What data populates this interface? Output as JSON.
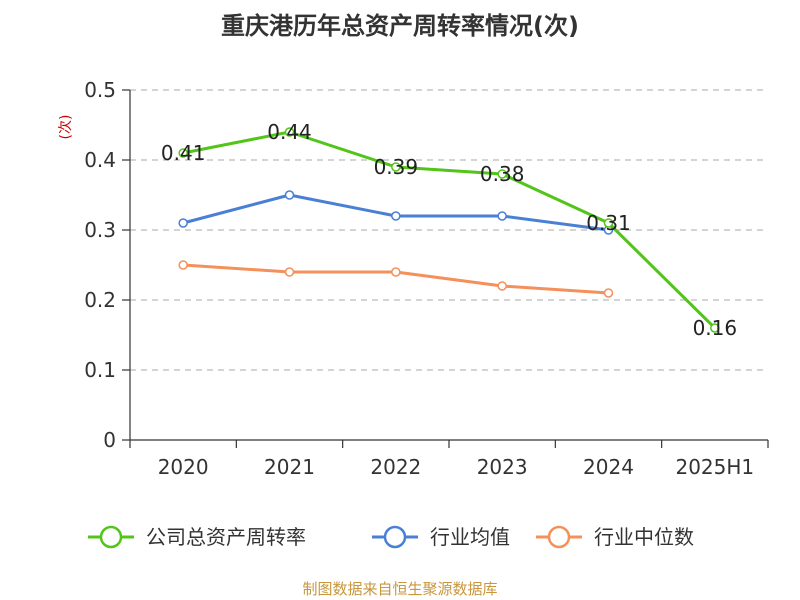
{
  "chart_data": {
    "type": "line",
    "title": "重庆港历年总资产周转率情况(次)",
    "ylabel": "(次)",
    "categories": [
      "2020",
      "2021",
      "2022",
      "2023",
      "2024",
      "2025H1"
    ],
    "ylim": [
      0,
      0.5
    ],
    "yticks": [
      "0",
      "0.1",
      "0.2",
      "0.3",
      "0.4",
      "0.5"
    ],
    "grid": true,
    "legend_position": "bottom",
    "series": [
      {
        "name": "公司总资产周转率",
        "color": "#52c41a",
        "values": [
          0.41,
          0.44,
          0.39,
          0.38,
          0.31,
          0.16
        ],
        "labels": [
          "0.41",
          "0.44",
          "0.39",
          "0.38",
          "0.31",
          "0.16"
        ]
      },
      {
        "name": "行业均值",
        "color": "#4a7fd6",
        "values": [
          0.31,
          0.35,
          0.32,
          0.32,
          0.3,
          null
        ]
      },
      {
        "name": "行业中位数",
        "color": "#f4905a",
        "values": [
          0.25,
          0.24,
          0.24,
          0.22,
          0.21,
          null
        ]
      }
    ]
  },
  "footer": {
    "source": "制图数据来自恒生聚源数据库"
  }
}
